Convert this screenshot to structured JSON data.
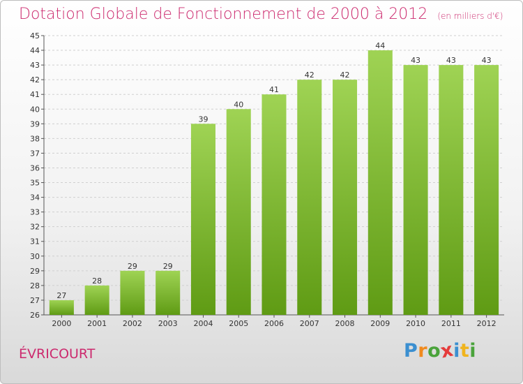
{
  "header": {
    "title": "Dotation Globale de Fonctionnement de 2000 à 2012",
    "subtitle": "(en milliers d'€)"
  },
  "place_name": "ÉVRICOURT",
  "logo": {
    "text": "Proxiti",
    "letter_colors": [
      "#3b8fd0",
      "#f08a1e",
      "#4aa33b",
      "#e53b3b",
      "#3b8fd0",
      "#f0b41e",
      "#4aa33b"
    ]
  },
  "colors": {
    "bar_top": "#9fd354",
    "bar_bottom": "#5f9b14",
    "title": "#cc2a6e"
  },
  "chart_data": {
    "type": "bar",
    "title": "Dotation Globale de Fonctionnement de 2000 à 2012",
    "subtitle": "(en milliers d'€)",
    "categories": [
      "2000",
      "2001",
      "2002",
      "2003",
      "2004",
      "2005",
      "2006",
      "2007",
      "2008",
      "2009",
      "2010",
      "2011",
      "2012"
    ],
    "values": [
      27,
      28,
      29,
      29,
      39,
      40,
      41,
      42,
      42,
      44,
      43,
      43,
      43
    ],
    "ylim": [
      26,
      45
    ],
    "yticks": [
      26,
      27,
      28,
      29,
      30,
      31,
      32,
      33,
      34,
      35,
      36,
      37,
      38,
      39,
      40,
      41,
      42,
      43,
      44,
      45
    ],
    "xlabel": "",
    "ylabel": "",
    "grid": true,
    "data_labels": true
  }
}
